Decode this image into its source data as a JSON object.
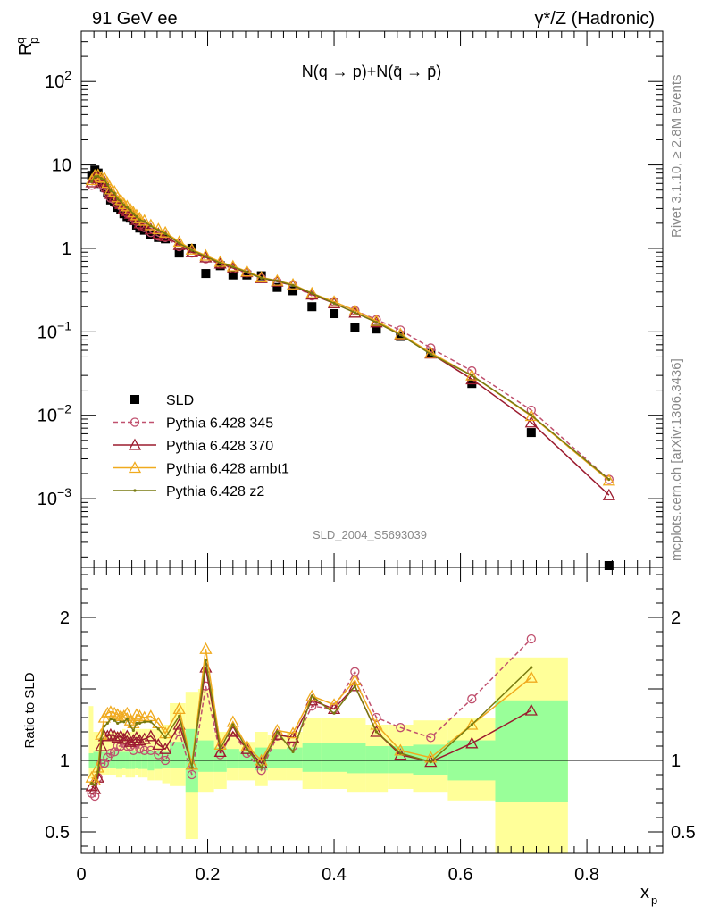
{
  "header": {
    "left_title": "91 GeV ee",
    "right_title": "γ*/Z (Hadronic)"
  },
  "side_labels": {
    "rivet": "Rivet 3.1.10, ≥ 2.8M events",
    "mcplots": "mcplots.cern.ch [arXiv:1306.3436]"
  },
  "watermark": "SLD_2004_S5693039",
  "colors": {
    "sld": "#000000",
    "p345": "#c0506e",
    "p370": "#9b1b2e",
    "ambt1": "#f0aa1e",
    "z2": "#787a10",
    "band_green": "#99ff99",
    "band_yellow": "#ffff99"
  },
  "chart_data": [
    {
      "type": "scatter",
      "panel": "main",
      "title": "N(q → p)+N(q̄ → p̄)",
      "ylabel": "R",
      "ylabel_sup": "q",
      "ylabel_sub": "p",
      "yscale": "log",
      "ylim": [
        0.00015,
        400
      ],
      "xlim": [
        0,
        0.92
      ],
      "yticks": [
        {
          "v": 0.001,
          "base": "10",
          "exp": "−3"
        },
        {
          "v": 0.01,
          "base": "10",
          "exp": "−2"
        },
        {
          "v": 0.1,
          "base": "10",
          "exp": "−1"
        },
        {
          "v": 1,
          "base": "1",
          "exp": ""
        },
        {
          "v": 10,
          "base": "10",
          "exp": ""
        },
        {
          "v": 100,
          "base": "10",
          "exp": "2"
        }
      ],
      "legend_position": "bottom-left",
      "series": [
        {
          "name": "SLD",
          "marker": "square",
          "x": [
            0.0165,
            0.0215,
            0.0265,
            0.0315,
            0.0365,
            0.0415,
            0.0465,
            0.0525,
            0.0575,
            0.0625,
            0.0675,
            0.0725,
            0.0775,
            0.0825,
            0.0875,
            0.0925,
            0.1,
            0.11,
            0.122,
            0.133,
            0.155,
            0.175,
            0.197,
            0.22,
            0.24,
            0.262,
            0.285,
            0.31,
            0.335,
            0.365,
            0.4,
            0.433,
            0.467,
            0.505,
            0.553,
            0.618,
            0.712,
            0.835
          ],
          "y": [
            7.5,
            8.7,
            8.0,
            6.0,
            5.4,
            4.6,
            3.8,
            3.6,
            3.1,
            2.9,
            2.6,
            2.4,
            2.3,
            2.15,
            1.9,
            1.75,
            1.65,
            1.45,
            1.35,
            1.3,
            0.88,
            1.0,
            0.5,
            0.62,
            0.48,
            0.48,
            0.47,
            0.34,
            0.31,
            0.2,
            0.165,
            0.112,
            0.108,
            0.088,
            0.055,
            0.024,
            0.0062,
            0.00013
          ]
        },
        {
          "name": "Pythia 6.428 345",
          "marker": "circle",
          "dashed": true,
          "x": [
            0.0165,
            0.0215,
            0.0265,
            0.0315,
            0.0365,
            0.0415,
            0.0465,
            0.0525,
            0.0575,
            0.0625,
            0.0675,
            0.0725,
            0.0775,
            0.0825,
            0.0875,
            0.0925,
            0.1,
            0.11,
            0.122,
            0.133,
            0.155,
            0.175,
            0.197,
            0.22,
            0.24,
            0.262,
            0.285,
            0.31,
            0.335,
            0.365,
            0.4,
            0.433,
            0.467,
            0.505,
            0.553,
            0.618,
            0.712,
            0.835
          ],
          "y": [
            5.7,
            6.5,
            7.0,
            5.9,
            5.3,
            4.7,
            4.0,
            3.8,
            3.4,
            3.2,
            2.9,
            2.65,
            2.5,
            2.3,
            2.1,
            1.9,
            1.78,
            1.55,
            1.4,
            1.35,
            1.05,
            0.88,
            0.75,
            0.65,
            0.57,
            0.51,
            0.44,
            0.4,
            0.36,
            0.27,
            0.23,
            0.18,
            0.14,
            0.105,
            0.064,
            0.034,
            0.0115,
            0.0017
          ]
        },
        {
          "name": "Pythia 6.428 370",
          "marker": "triangle",
          "x": [
            0.0165,
            0.0215,
            0.0265,
            0.0315,
            0.0365,
            0.0415,
            0.0465,
            0.0525,
            0.0575,
            0.0625,
            0.0675,
            0.0725,
            0.0775,
            0.0825,
            0.0875,
            0.0925,
            0.1,
            0.11,
            0.122,
            0.133,
            0.155,
            0.175,
            0.197,
            0.22,
            0.24,
            0.262,
            0.285,
            0.31,
            0.335,
            0.365,
            0.4,
            0.433,
            0.467,
            0.505,
            0.553,
            0.618,
            0.712,
            0.835
          ],
          "y": [
            6.2,
            7.0,
            7.0,
            6.6,
            6.3,
            5.4,
            4.5,
            4.2,
            3.6,
            3.4,
            3.0,
            2.8,
            2.6,
            2.45,
            2.2,
            2.0,
            1.9,
            1.7,
            1.5,
            1.4,
            1.1,
            0.9,
            0.78,
            0.66,
            0.58,
            0.52,
            0.44,
            0.4,
            0.36,
            0.28,
            0.22,
            0.17,
            0.13,
            0.092,
            0.055,
            0.027,
            0.0082,
            0.0011
          ]
        },
        {
          "name": "Pythia 6.428 ambt1",
          "marker": "triangle",
          "x": [
            0.0165,
            0.0215,
            0.0265,
            0.0315,
            0.0365,
            0.0415,
            0.0465,
            0.0525,
            0.0575,
            0.0625,
            0.0675,
            0.0725,
            0.0775,
            0.0825,
            0.0875,
            0.0925,
            0.1,
            0.11,
            0.122,
            0.133,
            0.155,
            0.175,
            0.197,
            0.22,
            0.24,
            0.262,
            0.285,
            0.31,
            0.335,
            0.365,
            0.4,
            0.433,
            0.467,
            0.505,
            0.553,
            0.618,
            0.712,
            0.835
          ],
          "y": [
            6.6,
            7.5,
            7.6,
            7.1,
            7.0,
            6.1,
            5.1,
            4.8,
            4.1,
            3.8,
            3.4,
            3.2,
            2.95,
            2.7,
            2.5,
            2.3,
            2.15,
            1.9,
            1.7,
            1.55,
            1.2,
            0.97,
            0.82,
            0.69,
            0.61,
            0.53,
            0.45,
            0.41,
            0.37,
            0.29,
            0.23,
            0.18,
            0.135,
            0.094,
            0.056,
            0.03,
            0.0098,
            0.00165
          ]
        },
        {
          "name": "Pythia 6.428 z2",
          "marker": "dot",
          "x": [
            0.0165,
            0.0215,
            0.0265,
            0.0315,
            0.0365,
            0.0415,
            0.0465,
            0.0525,
            0.0575,
            0.0625,
            0.0675,
            0.0725,
            0.0775,
            0.0825,
            0.0875,
            0.0925,
            0.1,
            0.11,
            0.122,
            0.133,
            0.155,
            0.175,
            0.197,
            0.22,
            0.24,
            0.262,
            0.285,
            0.31,
            0.335,
            0.365,
            0.4,
            0.433,
            0.467,
            0.505,
            0.553,
            0.618,
            0.712,
            0.835
          ],
          "y": [
            6.3,
            7.2,
            7.3,
            6.9,
            6.7,
            5.8,
            4.9,
            4.6,
            3.9,
            3.7,
            3.3,
            3.1,
            2.85,
            2.6,
            2.4,
            2.2,
            2.1,
            1.85,
            1.65,
            1.5,
            1.15,
            0.95,
            0.8,
            0.67,
            0.6,
            0.52,
            0.44,
            0.41,
            0.36,
            0.29,
            0.22,
            0.17,
            0.13,
            0.092,
            0.054,
            0.03,
            0.01,
            0.0017
          ]
        }
      ]
    },
    {
      "type": "scatter",
      "panel": "ratio",
      "ylabel": "Ratio to SLD",
      "xlabel": "x",
      "xlabel_sub": "p",
      "ylim": [
        0.35,
        2.35
      ],
      "xlim": [
        0,
        0.92
      ],
      "xticks": [
        0,
        0.2,
        0.4,
        0.6,
        0.8
      ],
      "xtick_labels": [
        "0",
        "0.2",
        "0.4",
        "0.6",
        "0.8"
      ],
      "yticks": [
        0.5,
        1,
        2
      ],
      "ytick_labels": [
        "0.5",
        "1",
        "2"
      ],
      "bands": {
        "edges": [
          0.012,
          0.019,
          0.024,
          0.029,
          0.034,
          0.039,
          0.044,
          0.05,
          0.055,
          0.06,
          0.065,
          0.07,
          0.075,
          0.08,
          0.085,
          0.09,
          0.095,
          0.105,
          0.115,
          0.128,
          0.14,
          0.165,
          0.185,
          0.21,
          0.23,
          0.25,
          0.275,
          0.295,
          0.325,
          0.35,
          0.38,
          0.42,
          0.45,
          0.485,
          0.525,
          0.58,
          0.655,
          0.77
        ],
        "green_lo": [
          0.95,
          0.95,
          0.95,
          0.95,
          0.95,
          0.95,
          0.95,
          0.95,
          0.94,
          0.94,
          0.95,
          0.94,
          0.94,
          0.94,
          0.95,
          0.94,
          0.94,
          0.93,
          0.94,
          0.95,
          0.95,
          0.78,
          0.92,
          0.92,
          0.95,
          0.95,
          0.93,
          0.95,
          0.95,
          0.92,
          0.92,
          0.91,
          0.91,
          0.91,
          0.9,
          0.86,
          0.71
        ],
        "green_hi": [
          1.05,
          1.06,
          1.06,
          1.06,
          1.06,
          1.06,
          1.06,
          1.07,
          1.07,
          1.06,
          1.06,
          1.06,
          1.06,
          1.07,
          1.06,
          1.07,
          1.06,
          1.07,
          1.07,
          1.06,
          1.13,
          1.22,
          1.14,
          1.09,
          1.08,
          1.06,
          1.09,
          1.08,
          1.09,
          1.12,
          1.12,
          1.12,
          1.1,
          1.1,
          1.11,
          1.14,
          1.42
        ],
        "yellow_lo": [
          0.87,
          0.88,
          0.9,
          0.9,
          0.9,
          0.9,
          0.9,
          0.9,
          0.88,
          0.88,
          0.9,
          0.88,
          0.88,
          0.88,
          0.9,
          0.88,
          0.88,
          0.86,
          0.86,
          0.84,
          0.82,
          0.45,
          0.78,
          0.8,
          0.86,
          0.86,
          0.82,
          0.86,
          0.86,
          0.8,
          0.8,
          0.78,
          0.78,
          0.8,
          0.78,
          0.72,
          0.35
        ],
        "yellow_hi": [
          1.38,
          1.2,
          1.2,
          1.18,
          1.2,
          1.18,
          1.2,
          1.2,
          1.2,
          1.2,
          1.22,
          1.2,
          1.2,
          1.22,
          1.22,
          1.22,
          1.22,
          1.22,
          1.22,
          1.25,
          1.4,
          1.48,
          1.5,
          1.2,
          1.2,
          1.13,
          1.2,
          1.18,
          1.2,
          1.3,
          1.3,
          1.3,
          1.25,
          1.25,
          1.28,
          1.3,
          1.72
        ]
      },
      "series": [
        {
          "name": "Pythia 6.428 345",
          "marker": "circle",
          "dashed": true,
          "x": [
            0.0165,
            0.0215,
            0.0265,
            0.0315,
            0.0365,
            0.0415,
            0.0465,
            0.0525,
            0.0575,
            0.0625,
            0.0675,
            0.0725,
            0.0775,
            0.0825,
            0.0875,
            0.0925,
            0.1,
            0.11,
            0.122,
            0.133,
            0.155,
            0.175,
            0.197,
            0.22,
            0.24,
            0.262,
            0.285,
            0.31,
            0.335,
            0.365,
            0.4,
            0.433,
            0.467,
            0.505,
            0.553,
            0.618,
            0.712
          ],
          "y": [
            0.77,
            0.75,
            0.88,
            0.98,
            0.98,
            1.02,
            1.05,
            1.06,
            1.1,
            1.1,
            1.12,
            1.1,
            1.1,
            1.07,
            1.12,
            1.08,
            1.07,
            1.07,
            1.04,
            1.0,
            1.2,
            0.9,
            1.52,
            1.04,
            1.2,
            1.05,
            0.93,
            1.17,
            1.1,
            1.38,
            1.36,
            1.62,
            1.3,
            1.23,
            1.16,
            1.43,
            1.85
          ]
        },
        {
          "name": "Pythia 6.428 370",
          "marker": "triangle",
          "x": [
            0.0165,
            0.0215,
            0.0265,
            0.0315,
            0.0365,
            0.0415,
            0.0465,
            0.0525,
            0.0575,
            0.0625,
            0.0675,
            0.0725,
            0.0775,
            0.0825,
            0.0875,
            0.0925,
            0.1,
            0.11,
            0.122,
            0.133,
            0.155,
            0.175,
            0.197,
            0.22,
            0.24,
            0.262,
            0.285,
            0.31,
            0.335,
            0.365,
            0.4,
            0.433,
            0.467,
            0.505,
            0.553,
            0.618,
            0.712
          ],
          "y": [
            0.82,
            0.8,
            0.88,
            1.1,
            1.17,
            1.17,
            1.18,
            1.17,
            1.16,
            1.17,
            1.15,
            1.17,
            1.13,
            1.14,
            1.16,
            1.14,
            1.15,
            1.17,
            1.11,
            1.08,
            1.25,
            0.97,
            1.65,
            1.06,
            1.2,
            1.08,
            0.98,
            1.18,
            1.16,
            1.42,
            1.36,
            1.52,
            1.2,
            1.04,
            0.99,
            1.12,
            1.35
          ]
        },
        {
          "name": "Pythia 6.428 ambt1",
          "marker": "triangle",
          "x": [
            0.0165,
            0.0215,
            0.0265,
            0.0315,
            0.0365,
            0.0415,
            0.0465,
            0.0525,
            0.0575,
            0.0625,
            0.0675,
            0.0725,
            0.0775,
            0.0825,
            0.0875,
            0.0925,
            0.1,
            0.11,
            0.122,
            0.133,
            0.155,
            0.175,
            0.197,
            0.22,
            0.24,
            0.262,
            0.285,
            0.31,
            0.335,
            0.365,
            0.4,
            0.433,
            0.467,
            0.505,
            0.553,
            0.618,
            0.712
          ],
          "y": [
            0.88,
            0.86,
            0.95,
            1.18,
            1.3,
            1.33,
            1.34,
            1.33,
            1.32,
            1.31,
            1.31,
            1.33,
            1.28,
            1.26,
            1.32,
            1.31,
            1.3,
            1.31,
            1.26,
            1.19,
            1.36,
            0.97,
            1.78,
            1.11,
            1.27,
            1.1,
            1.0,
            1.21,
            1.19,
            1.45,
            1.39,
            1.56,
            1.25,
            1.07,
            1.02,
            1.25,
            1.58
          ]
        },
        {
          "name": "Pythia 6.428 z2",
          "marker": "dot",
          "x": [
            0.0165,
            0.0215,
            0.0265,
            0.0315,
            0.0365,
            0.0415,
            0.0465,
            0.0525,
            0.0575,
            0.0625,
            0.0675,
            0.0725,
            0.0775,
            0.0825,
            0.0875,
            0.0925,
            0.1,
            0.11,
            0.122,
            0.133,
            0.155,
            0.175,
            0.197,
            0.22,
            0.24,
            0.262,
            0.285,
            0.31,
            0.335,
            0.365,
            0.4,
            0.433,
            0.467,
            0.505,
            0.553,
            0.618,
            0.712
          ],
          "y": [
            0.84,
            0.83,
            0.92,
            1.15,
            1.24,
            1.26,
            1.29,
            1.28,
            1.26,
            1.27,
            1.27,
            1.29,
            1.24,
            1.21,
            1.26,
            1.26,
            1.27,
            1.27,
            1.22,
            1.16,
            1.31,
            0.95,
            1.7,
            1.08,
            1.25,
            1.08,
            0.95,
            1.2,
            1.06,
            1.45,
            1.33,
            1.52,
            1.2,
            1.05,
            0.99,
            1.25,
            1.65
          ]
        }
      ]
    }
  ]
}
